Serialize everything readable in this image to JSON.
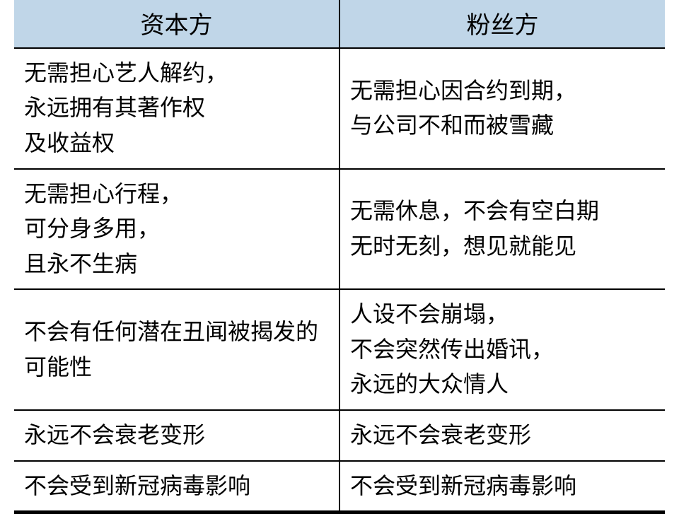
{
  "table": {
    "type": "table",
    "header_bg": "#c0d6e8",
    "border_color": "#000000",
    "outer_border_width": 5,
    "inner_border_width": 2,
    "font_family": "SimSun",
    "header_fontsize": 34,
    "cell_fontsize": 32,
    "line_height": 1.55,
    "columns": [
      {
        "key": "capital",
        "label": "资本方",
        "width_pct": 50,
        "align": "center"
      },
      {
        "key": "fans",
        "label": "粉丝方",
        "width_pct": 50,
        "align": "center"
      }
    ],
    "rows": [
      {
        "capital": [
          "无需担心艺人解约，",
          "永远拥有其著作权",
          "及收益权"
        ],
        "fans": [
          "无需担心因合约到期，",
          "与公司不和而被雪藏"
        ]
      },
      {
        "capital": [
          "无需担心行程，",
          "可分身多用，",
          "且永不生病"
        ],
        "fans": [
          "无需休息，不会有空白期",
          "无时无刻，想见就能见"
        ]
      },
      {
        "capital": [
          "不会有任何潜在丑闻被揭发的可能性"
        ],
        "fans": [
          "人设不会崩塌，",
          "不会突然传出婚讯，",
          "永远的大众情人"
        ]
      },
      {
        "capital": [
          "永远不会衰老变形"
        ],
        "fans": [
          "永远不会衰老变形"
        ]
      },
      {
        "capital": [
          "不会受到新冠病毒影响"
        ],
        "fans": [
          "不会受到新冠病毒影响"
        ]
      }
    ]
  }
}
